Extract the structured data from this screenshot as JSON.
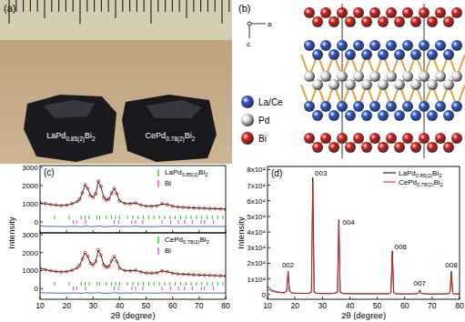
{
  "panels": {
    "a": {
      "label": "(a)",
      "samples": [
        "LaPd0.85(2)Bi2",
        "CePd0.78(2)Bi2"
      ]
    },
    "b": {
      "label": "(b)",
      "axes": [
        "a",
        "c"
      ],
      "legend": [
        {
          "name": "La/Ce",
          "color": "#2a56d8"
        },
        {
          "name": "Pd",
          "color": "#e4e4e4"
        },
        {
          "name": "Bi",
          "color": "#e01818"
        }
      ]
    }
  },
  "chart_data": [
    {
      "type": "line",
      "title": "(c)",
      "ylabel": "Intensity",
      "tick_labels": "y",
      "legend": "top-right",
      "x": [
        10,
        12,
        14,
        16,
        18,
        20,
        22,
        24,
        25,
        26,
        27,
        28,
        29,
        30,
        31,
        32,
        33,
        34,
        35,
        36,
        37,
        38,
        39,
        40,
        42,
        44,
        46,
        48,
        50,
        52,
        54,
        56,
        58,
        60,
        62,
        64,
        66,
        68,
        70,
        72,
        74,
        76,
        78,
        80
      ],
      "xlim": [
        10,
        80
      ],
      "xticks": [
        10,
        20,
        30,
        40,
        50,
        60,
        70,
        80
      ],
      "ylim": [
        -600,
        3100
      ],
      "yticks": [
        0,
        1000,
        2000,
        3000
      ],
      "series": [
        {
          "color": "#e00000",
          "marker": "circle",
          "line_style": "none",
          "values": [
            1080,
            1010,
            960,
            930,
            900,
            920,
            1000,
            1120,
            1250,
            1600,
            2050,
            1850,
            1450,
            1350,
            1550,
            2250,
            1950,
            1350,
            1200,
            1250,
            1600,
            1850,
            1550,
            1150,
            1020,
            1000,
            1050,
            930,
            870,
            860,
            880,
            1000,
            960,
            860,
            820,
            800,
            790,
            770,
            760,
            750,
            740,
            730,
            720,
            700
          ]
        },
        {
          "color": "#000000",
          "line_style": "solid",
          "values": [
            1050,
            1000,
            955,
            925,
            905,
            925,
            995,
            1110,
            1260,
            1620,
            2030,
            1830,
            1460,
            1360,
            1540,
            2230,
            1930,
            1370,
            1210,
            1260,
            1590,
            1830,
            1540,
            1160,
            1010,
            1010,
            1030,
            940,
            875,
            865,
            890,
            990,
            950,
            865,
            825,
            805,
            785,
            775,
            760,
            750,
            740,
            730,
            720,
            705
          ]
        },
        {
          "color": "#1a3cc8",
          "line_style": "solid",
          "values": [
            -220,
            -240,
            -245,
            -245,
            -255,
            -255,
            -245,
            -240,
            -260,
            -270,
            -230,
            -230,
            -260,
            -260,
            -240,
            -230,
            -230,
            -270,
            -260,
            -260,
            -240,
            -230,
            -240,
            -260,
            -240,
            -260,
            -230,
            -260,
            -255,
            -255,
            -260,
            -240,
            -240,
            -255,
            -255,
            -255,
            -245,
            -255,
            -250,
            -250,
            -250,
            -250,
            -250,
            -255
          ]
        }
      ],
      "reflections": [
        {
          "name": "LaPd0.85(2)Bi2",
          "color": "#00a000",
          "x": [
            15.5,
            21,
            25.5,
            27,
            28.5,
            31.5,
            32.5,
            35,
            37,
            38.5,
            40,
            43,
            45,
            47,
            49,
            51,
            53,
            55,
            57,
            59,
            61,
            63,
            65,
            67,
            69,
            71,
            73,
            75,
            77,
            79
          ]
        },
        {
          "name": "Bi",
          "color": "#d000d0",
          "x": [
            22.5,
            23.8,
            27.2,
            38,
            39.6,
            44.6,
            46,
            48.7,
            56,
            59.3,
            62.2,
            64.5,
            67.4,
            70.8,
            72,
            75.4
          ]
        }
      ]
    },
    {
      "type": "line",
      "xlabel": "2θ (degree)",
      "legend": "top-right",
      "x": [
        10,
        12,
        14,
        16,
        18,
        20,
        22,
        24,
        25,
        26,
        27,
        28,
        29,
        30,
        31,
        32,
        33,
        34,
        35,
        36,
        37,
        38,
        39,
        40,
        42,
        44,
        46,
        48,
        50,
        52,
        54,
        56,
        58,
        60,
        62,
        64,
        66,
        68,
        70,
        72,
        74,
        76,
        78,
        80
      ],
      "xlim": [
        10,
        80
      ],
      "xticks": [
        10,
        20,
        30,
        40,
        50,
        60,
        70,
        80
      ],
      "ylim": [
        -600,
        3100
      ],
      "yticks": [
        0,
        1000,
        2000,
        3000
      ],
      "series": [
        {
          "color": "#e00000",
          "marker": "circle",
          "line_style": "none",
          "values": [
            1150,
            1060,
            990,
            950,
            920,
            940,
            1020,
            1150,
            1300,
            1650,
            2000,
            1800,
            1400,
            1300,
            1500,
            2150,
            1850,
            1300,
            1180,
            1230,
            1550,
            1800,
            1500,
            1120,
            1000,
            980,
            1020,
            920,
            860,
            850,
            870,
            980,
            940,
            850,
            810,
            790,
            780,
            760,
            750,
            740,
            730,
            720,
            710,
            690
          ]
        },
        {
          "color": "#000000",
          "line_style": "solid",
          "values": [
            1120,
            1050,
            985,
            945,
            925,
            945,
            1015,
            1140,
            1310,
            1670,
            1980,
            1780,
            1410,
            1310,
            1490,
            2130,
            1830,
            1320,
            1190,
            1240,
            1540,
            1780,
            1490,
            1130,
            995,
            985,
            1005,
            930,
            865,
            855,
            880,
            975,
            935,
            855,
            815,
            795,
            780,
            765,
            750,
            740,
            730,
            720,
            710,
            695
          ]
        },
        {
          "color": "#1a3cc8",
          "line_style": "solid",
          "values": [
            -230,
            -245,
            -250,
            -250,
            -260,
            -255,
            -250,
            -245,
            -265,
            -275,
            -235,
            -235,
            -260,
            -265,
            -245,
            -235,
            -235,
            -275,
            -265,
            -260,
            -245,
            -235,
            -245,
            -265,
            -245,
            -260,
            -235,
            -260,
            -255,
            -255,
            -260,
            -245,
            -245,
            -255,
            -255,
            -255,
            -250,
            -255,
            -250,
            -250,
            -250,
            -250,
            -250,
            -255
          ]
        }
      ],
      "reflections": [
        {
          "name": "CePd0.78(2)Bi2",
          "color": "#00a000",
          "x": [
            15.5,
            21,
            25.5,
            27,
            28.5,
            31.5,
            32.5,
            35,
            37,
            38.5,
            40,
            43,
            45,
            47,
            49,
            51,
            53,
            55,
            57,
            59,
            61,
            63,
            65,
            67,
            69,
            71,
            73,
            75,
            77,
            79
          ]
        },
        {
          "name": "Bi",
          "color": "#d000d0",
          "x": [
            22.5,
            23.8,
            27.2,
            38,
            39.6,
            44.6,
            46,
            48.7,
            56,
            59.3,
            62.2,
            64.5,
            67.4,
            70.8,
            72,
            75.4
          ]
        }
      ]
    },
    {
      "type": "line",
      "title": "(d)",
      "xlabel": "2θ (degree)",
      "ylabel": "Intensity",
      "legend": "top-right",
      "x": [
        10,
        11,
        12,
        14,
        16,
        17,
        17.5,
        18,
        19,
        22,
        25,
        26,
        26.5,
        27,
        28,
        31,
        34,
        35.5,
        36,
        36.5,
        37.5,
        40,
        45,
        50,
        54,
        55,
        55.5,
        56,
        57,
        60,
        63,
        65,
        65.5,
        66,
        68,
        72,
        75,
        76.5,
        77,
        77.5,
        78,
        80
      ],
      "xlim": [
        10,
        80
      ],
      "xticks": [
        10,
        20,
        30,
        40,
        50,
        60,
        70,
        80
      ],
      "ylim": [
        -3000,
        82000
      ],
      "yticks": [
        0,
        {
          "value": 10000,
          "label": "1x10⁴"
        },
        {
          "value": 20000,
          "label": "2x10⁴"
        },
        {
          "value": 30000,
          "label": "3x10⁴"
        },
        {
          "value": 40000,
          "label": "4x10⁴"
        },
        {
          "value": 50000,
          "label": "5x10⁴"
        },
        {
          "value": 60000,
          "label": "6x10⁴"
        },
        {
          "value": 70000,
          "label": "7x10⁴"
        },
        {
          "value": 80000,
          "label": "8x10⁴"
        }
      ],
      "series": [
        {
          "name": "LaPd0.85(2)Bi2",
          "color": "#000000",
          "line_style": "solid",
          "values": [
            5500,
            3500,
            2500,
            1600,
            1200,
            2500,
            15000,
            2500,
            1000,
            800,
            800,
            1500,
            75000,
            1500,
            800,
            700,
            700,
            1500,
            48000,
            1500,
            700,
            600,
            500,
            500,
            500,
            1200,
            28000,
            1200,
            500,
            400,
            400,
            800,
            3000,
            800,
            400,
            400,
            400,
            900,
            15000,
            900,
            400,
            400
          ]
        },
        {
          "name": "CePd0.78(2)Bi2",
          "color": "#e02020",
          "line_style": "solid",
          "values": [
            3500,
            2500,
            1800,
            1300,
            1000,
            2000,
            14000,
            2000,
            900,
            700,
            700,
            1300,
            72000,
            1300,
            700,
            600,
            600,
            1300,
            46000,
            1300,
            600,
            500,
            450,
            450,
            450,
            1000,
            26000,
            1000,
            450,
            380,
            380,
            700,
            2500,
            700,
            380,
            380,
            380,
            800,
            13500,
            800,
            380,
            380
          ]
        }
      ],
      "annotations": [
        {
          "text": "002",
          "x": 17.5,
          "y": 17500
        },
        {
          "text": "003",
          "x": 29.5,
          "y": 76000
        },
        {
          "text": "004",
          "x": 39.5,
          "y": 45000
        },
        {
          "text": "006",
          "x": 58.5,
          "y": 29000
        },
        {
          "text": "007",
          "x": 65.5,
          "y": 6000
        },
        {
          "text": "008",
          "x": 77,
          "y": 17500
        }
      ]
    }
  ]
}
